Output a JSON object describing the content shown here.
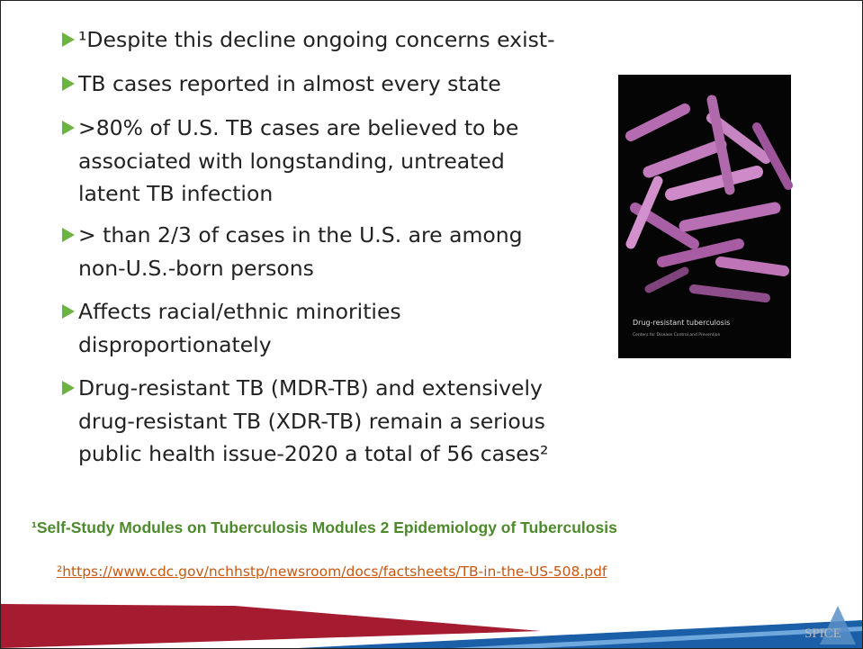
{
  "bullets": [
    {
      "lines": [
        "¹Despite this decline ongoing concerns exist-"
      ]
    },
    {
      "lines": [
        "TB cases reported in almost every state"
      ]
    },
    {
      "lines": [
        ">80% of U.S. TB cases are believed to be",
        "associated with longstanding, untreated",
        "latent TB infection"
      ]
    },
    {
      "lines": [
        "> than 2/3 of cases in the U.S. are among",
        "non-U.S.-born persons"
      ]
    },
    {
      "lines": [
        "Affects racial/ethnic minorities",
        "disproportionately"
      ]
    },
    {
      "lines": [
        "Drug-resistant TB (MDR-TB) and extensively",
        "drug-resistant TB (XDR-TB) remain a serious",
        "public health issue-2020 a total of 56 cases²"
      ]
    }
  ],
  "image": {
    "title": "Drug-resistant tuberculosis",
    "subtitle": "Centers for Disease Control and Prevention"
  },
  "references": {
    "first": "¹Self-Study Modules on Tuberculosis Modules 2 Epidemiology of Tuberculosis",
    "second": "²https://www.cdc.gov/nchhstp/newsroom/docs/factsheets/TB-in-the-US-508.pdf"
  },
  "logo": "SPICE"
}
